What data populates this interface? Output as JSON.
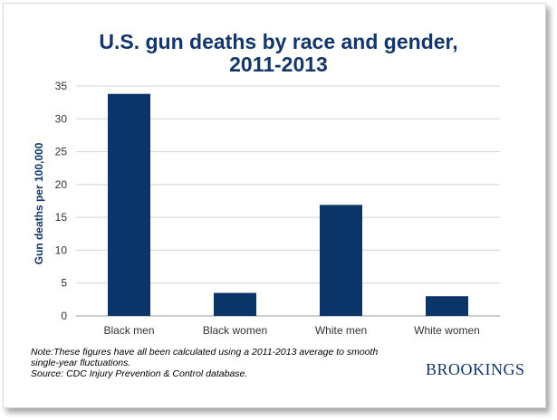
{
  "title": {
    "line1": "U.S. gun deaths by race and gender,",
    "line2": "2011-2013"
  },
  "colors": {
    "bar": "#0b3469",
    "title": "#13366b",
    "grid": "#d3d3d3",
    "axis_text": "#333333"
  },
  "note": {
    "line1": "Note:These figures have all been calculated using a 2011-2013 average to smooth",
    "line2": "single-year fluctuations.",
    "source": "Source: CDC Injury Prevention & Control database."
  },
  "brand": "BROOKINGS",
  "chart_data": {
    "type": "bar",
    "title": "U.S. gun deaths by race and gender, 2011-2013",
    "xlabel": "",
    "ylabel": "Gun deaths per 100,000",
    "categories": [
      "Black men",
      "Black women",
      "White men",
      "White women"
    ],
    "values": [
      33.8,
      3.5,
      16.9,
      3.0
    ],
    "ylim": [
      0,
      35
    ],
    "yticks": [
      0,
      5,
      10,
      15,
      20,
      25,
      30,
      35
    ],
    "grid": true,
    "legend": "none"
  }
}
